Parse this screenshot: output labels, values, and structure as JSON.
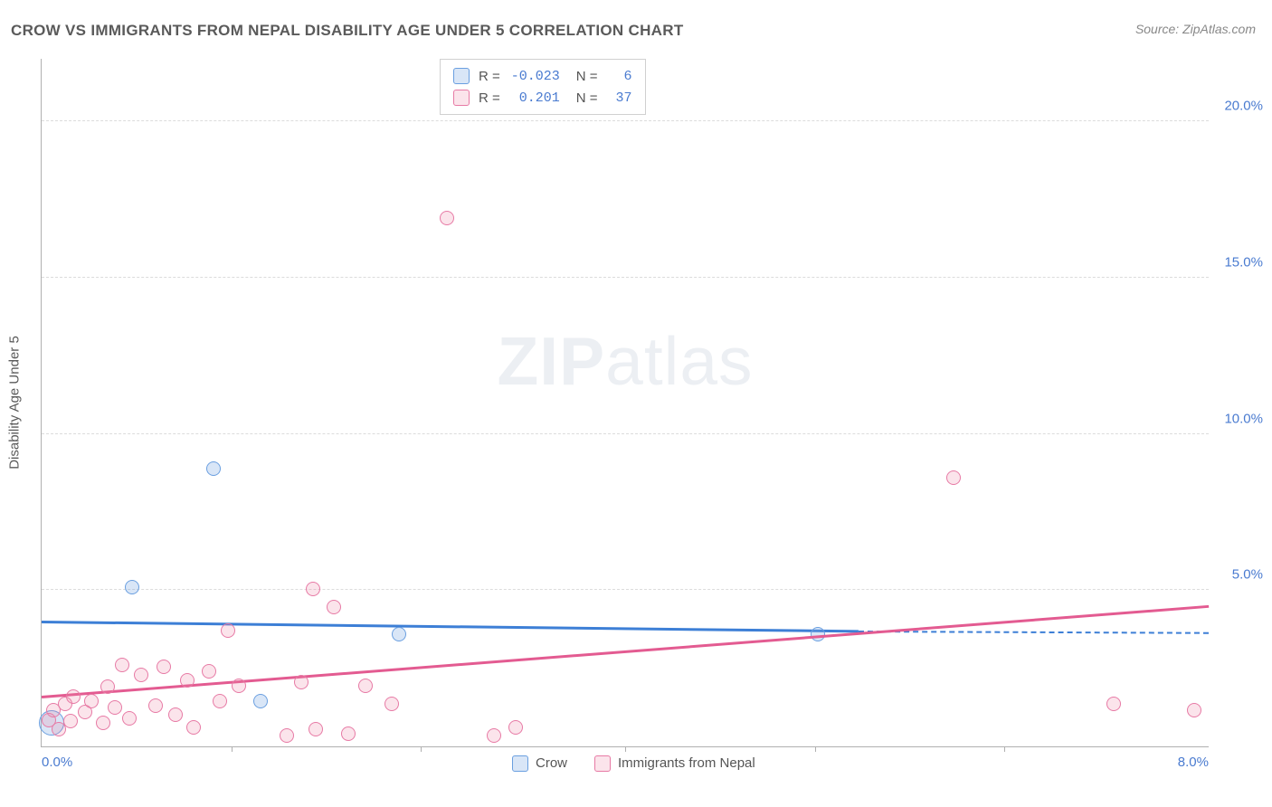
{
  "title": "CROW VS IMMIGRANTS FROM NEPAL DISABILITY AGE UNDER 5 CORRELATION CHART",
  "source_label": "Source:",
  "source_value": "ZipAtlas.com",
  "y_axis_title": "Disability Age Under 5",
  "watermark_a": "ZIP",
  "watermark_b": "atlas",
  "chart": {
    "type": "scatter",
    "xlim": [
      0,
      8
    ],
    "ylim": [
      0,
      22
    ],
    "x_ticks_major": [
      0,
      8
    ],
    "x_ticks_minor": [
      1.3,
      2.6,
      4.0,
      5.3,
      6.6
    ],
    "y_ticks": [
      5,
      10,
      15,
      20
    ],
    "x_tick_labels": [
      "0.0%",
      "8.0%"
    ],
    "y_tick_labels": [
      "5.0%",
      "10.0%",
      "15.0%",
      "20.0%"
    ],
    "background_color": "#ffffff",
    "grid_color": "#dcdcdc",
    "axis_color": "#b0b0b0",
    "tick_label_color": "#4a7bd0",
    "marker_radius": 8,
    "marker_radius_big": 14,
    "series": [
      {
        "key": "crow",
        "label": "Crow",
        "fill": "rgba(120,165,225,0.28)",
        "stroke": "#6a9fe0",
        "line_color": "#3d7fd6",
        "r_value": "-0.023",
        "n_value": "6",
        "regression": {
          "x1": 0,
          "y1": 3.95,
          "x2": 5.6,
          "y2": 3.65,
          "dashed_after_x": 5.6,
          "x_end": 8,
          "y_end": 3.6
        },
        "points": [
          {
            "x": 0.07,
            "y": 0.75,
            "big": true
          },
          {
            "x": 0.62,
            "y": 5.1
          },
          {
            "x": 1.18,
            "y": 8.9
          },
          {
            "x": 1.5,
            "y": 1.45
          },
          {
            "x": 2.45,
            "y": 3.6
          },
          {
            "x": 5.32,
            "y": 3.6
          }
        ]
      },
      {
        "key": "nepal",
        "label": "Immigrants from Nepal",
        "fill": "rgba(235,130,165,0.22)",
        "stroke": "#e77aa5",
        "line_color": "#e35b91",
        "r_value": "0.201",
        "n_value": "37",
        "regression": {
          "x1": 0,
          "y1": 1.55,
          "x2": 8,
          "y2": 4.45
        },
        "points": [
          {
            "x": 0.05,
            "y": 0.85
          },
          {
            "x": 0.08,
            "y": 1.15
          },
          {
            "x": 0.12,
            "y": 0.55
          },
          {
            "x": 0.16,
            "y": 1.35
          },
          {
            "x": 0.2,
            "y": 0.8
          },
          {
            "x": 0.22,
            "y": 1.6
          },
          {
            "x": 0.3,
            "y": 1.1
          },
          {
            "x": 0.34,
            "y": 1.45
          },
          {
            "x": 0.42,
            "y": 0.75
          },
          {
            "x": 0.45,
            "y": 1.9
          },
          {
            "x": 0.5,
            "y": 1.25
          },
          {
            "x": 0.55,
            "y": 2.6
          },
          {
            "x": 0.6,
            "y": 0.9
          },
          {
            "x": 0.68,
            "y": 2.3
          },
          {
            "x": 0.78,
            "y": 1.3
          },
          {
            "x": 0.84,
            "y": 2.55
          },
          {
            "x": 0.92,
            "y": 1.0
          },
          {
            "x": 1.0,
            "y": 2.1
          },
          {
            "x": 1.04,
            "y": 0.6
          },
          {
            "x": 1.15,
            "y": 2.4
          },
          {
            "x": 1.22,
            "y": 1.45
          },
          {
            "x": 1.28,
            "y": 3.7
          },
          {
            "x": 1.35,
            "y": 1.95
          },
          {
            "x": 1.68,
            "y": 0.35
          },
          {
            "x": 1.78,
            "y": 2.05
          },
          {
            "x": 1.86,
            "y": 5.05
          },
          {
            "x": 1.88,
            "y": 0.55
          },
          {
            "x": 2.0,
            "y": 4.45
          },
          {
            "x": 2.1,
            "y": 0.4
          },
          {
            "x": 2.22,
            "y": 1.95
          },
          {
            "x": 2.4,
            "y": 1.35
          },
          {
            "x": 2.78,
            "y": 16.9
          },
          {
            "x": 3.1,
            "y": 0.35
          },
          {
            "x": 3.25,
            "y": 0.6
          },
          {
            "x": 6.25,
            "y": 8.6
          },
          {
            "x": 7.35,
            "y": 1.35
          },
          {
            "x": 7.9,
            "y": 1.15
          }
        ]
      }
    ]
  },
  "legend_top": {
    "r_label": "R =",
    "n_label": "N ="
  }
}
